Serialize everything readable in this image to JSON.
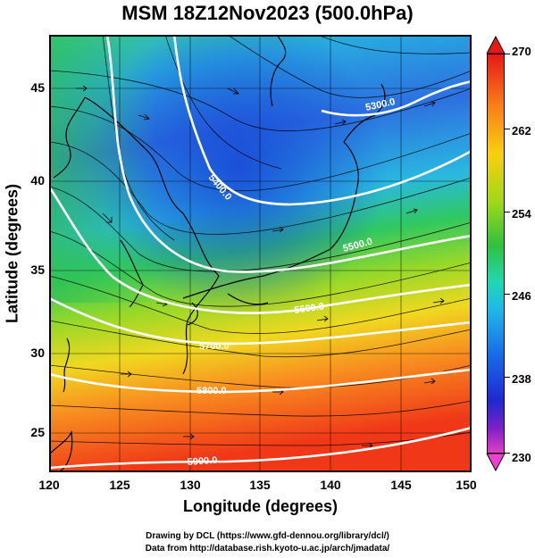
{
  "title": "MSM 18Z12Nov2023 (500.0hPa)",
  "x_axis": {
    "label": "Longitude (degrees)",
    "ticks": [
      "120",
      "125",
      "130",
      "135",
      "140",
      "145",
      "150"
    ]
  },
  "y_axis": {
    "label": "Latitude  (degrees)",
    "ticks": [
      "25",
      "30",
      "35",
      "40",
      "45"
    ]
  },
  "colorbar": {
    "labels": [
      "270",
      "262",
      "254",
      "246",
      "238",
      "230"
    ],
    "colors": {
      "top": "#e81818",
      "mid": "#30c040",
      "low": "#2028d0",
      "bottom": "#e040c0"
    }
  },
  "contours": {
    "labels": [
      "5300.0",
      "5400.0",
      "5500.0",
      "5600.0",
      "5700.0",
      "5800.0",
      "5900.0"
    ]
  },
  "credits": {
    "line1": "Drawing by DCL (https://www.gfd-dennou.org/library/dcl/)",
    "line2": "Data from http://database.rish.kyoto-u.ac.jp/arch/jmadata/"
  }
}
